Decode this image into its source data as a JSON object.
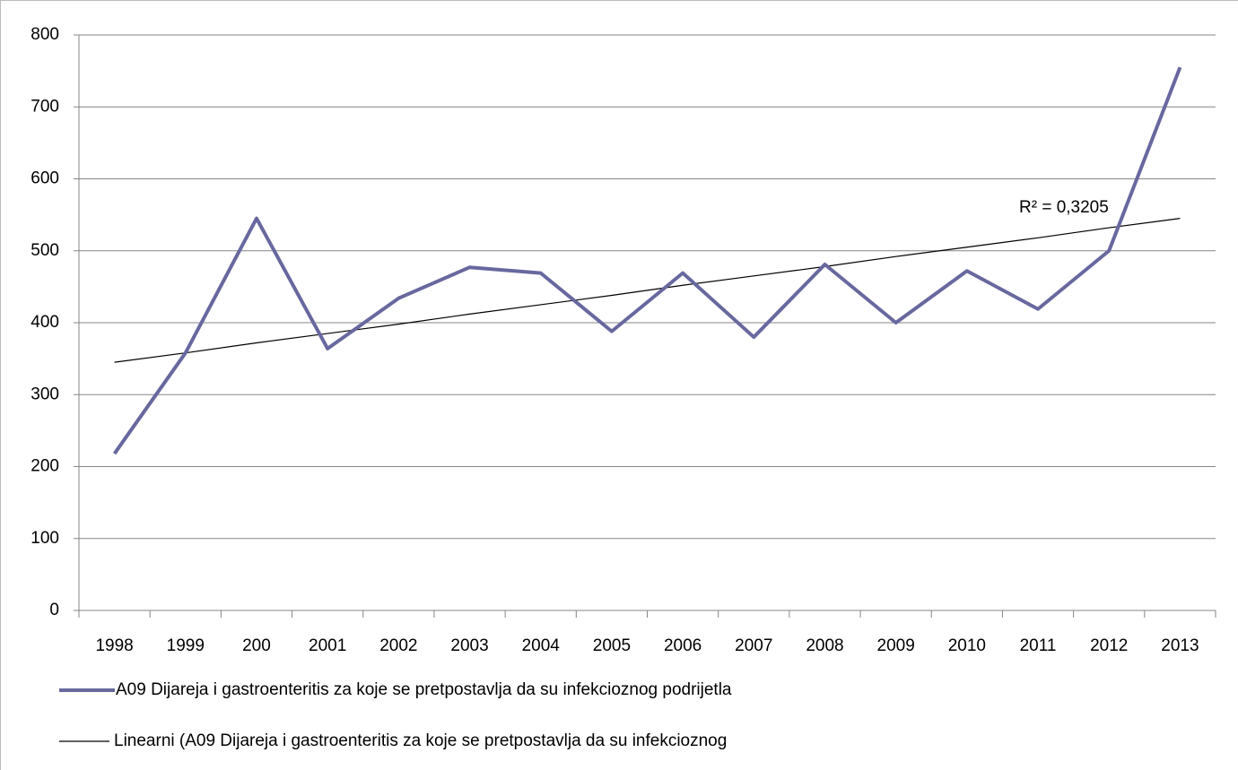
{
  "chart_data": {
    "type": "line",
    "categories": [
      "1998",
      "1999",
      "200",
      "2001",
      "2002",
      "2003",
      "2004",
      "2005",
      "2006",
      "2007",
      "2008",
      "2009",
      "2010",
      "2011",
      "2012",
      "2013"
    ],
    "series": [
      {
        "name": "A09 Dijareja i gastroenteritis za koje se pretpostavlja da su infekcioznog podrijetla",
        "color": "#68689f",
        "values": [
          218,
          358,
          545,
          364,
          434,
          477,
          469,
          388,
          469,
          380,
          481,
          400,
          472,
          419,
          500,
          755
        ]
      },
      {
        "name": "Linearni (A09 Dijareja i gastroenteritis za koje se pretpostavlja da su infekcioznog",
        "color": "#000000",
        "values": [
          345,
          358,
          372,
          385,
          398,
          412,
          425,
          438,
          452,
          465,
          478,
          492,
          505,
          518,
          532,
          545
        ]
      }
    ],
    "annotations": [
      "R² = 0,3205"
    ],
    "ylim": [
      0,
      800
    ],
    "yticks": [
      0,
      100,
      200,
      300,
      400,
      500,
      600,
      700,
      800
    ],
    "grid": true,
    "legend": "bottom"
  }
}
